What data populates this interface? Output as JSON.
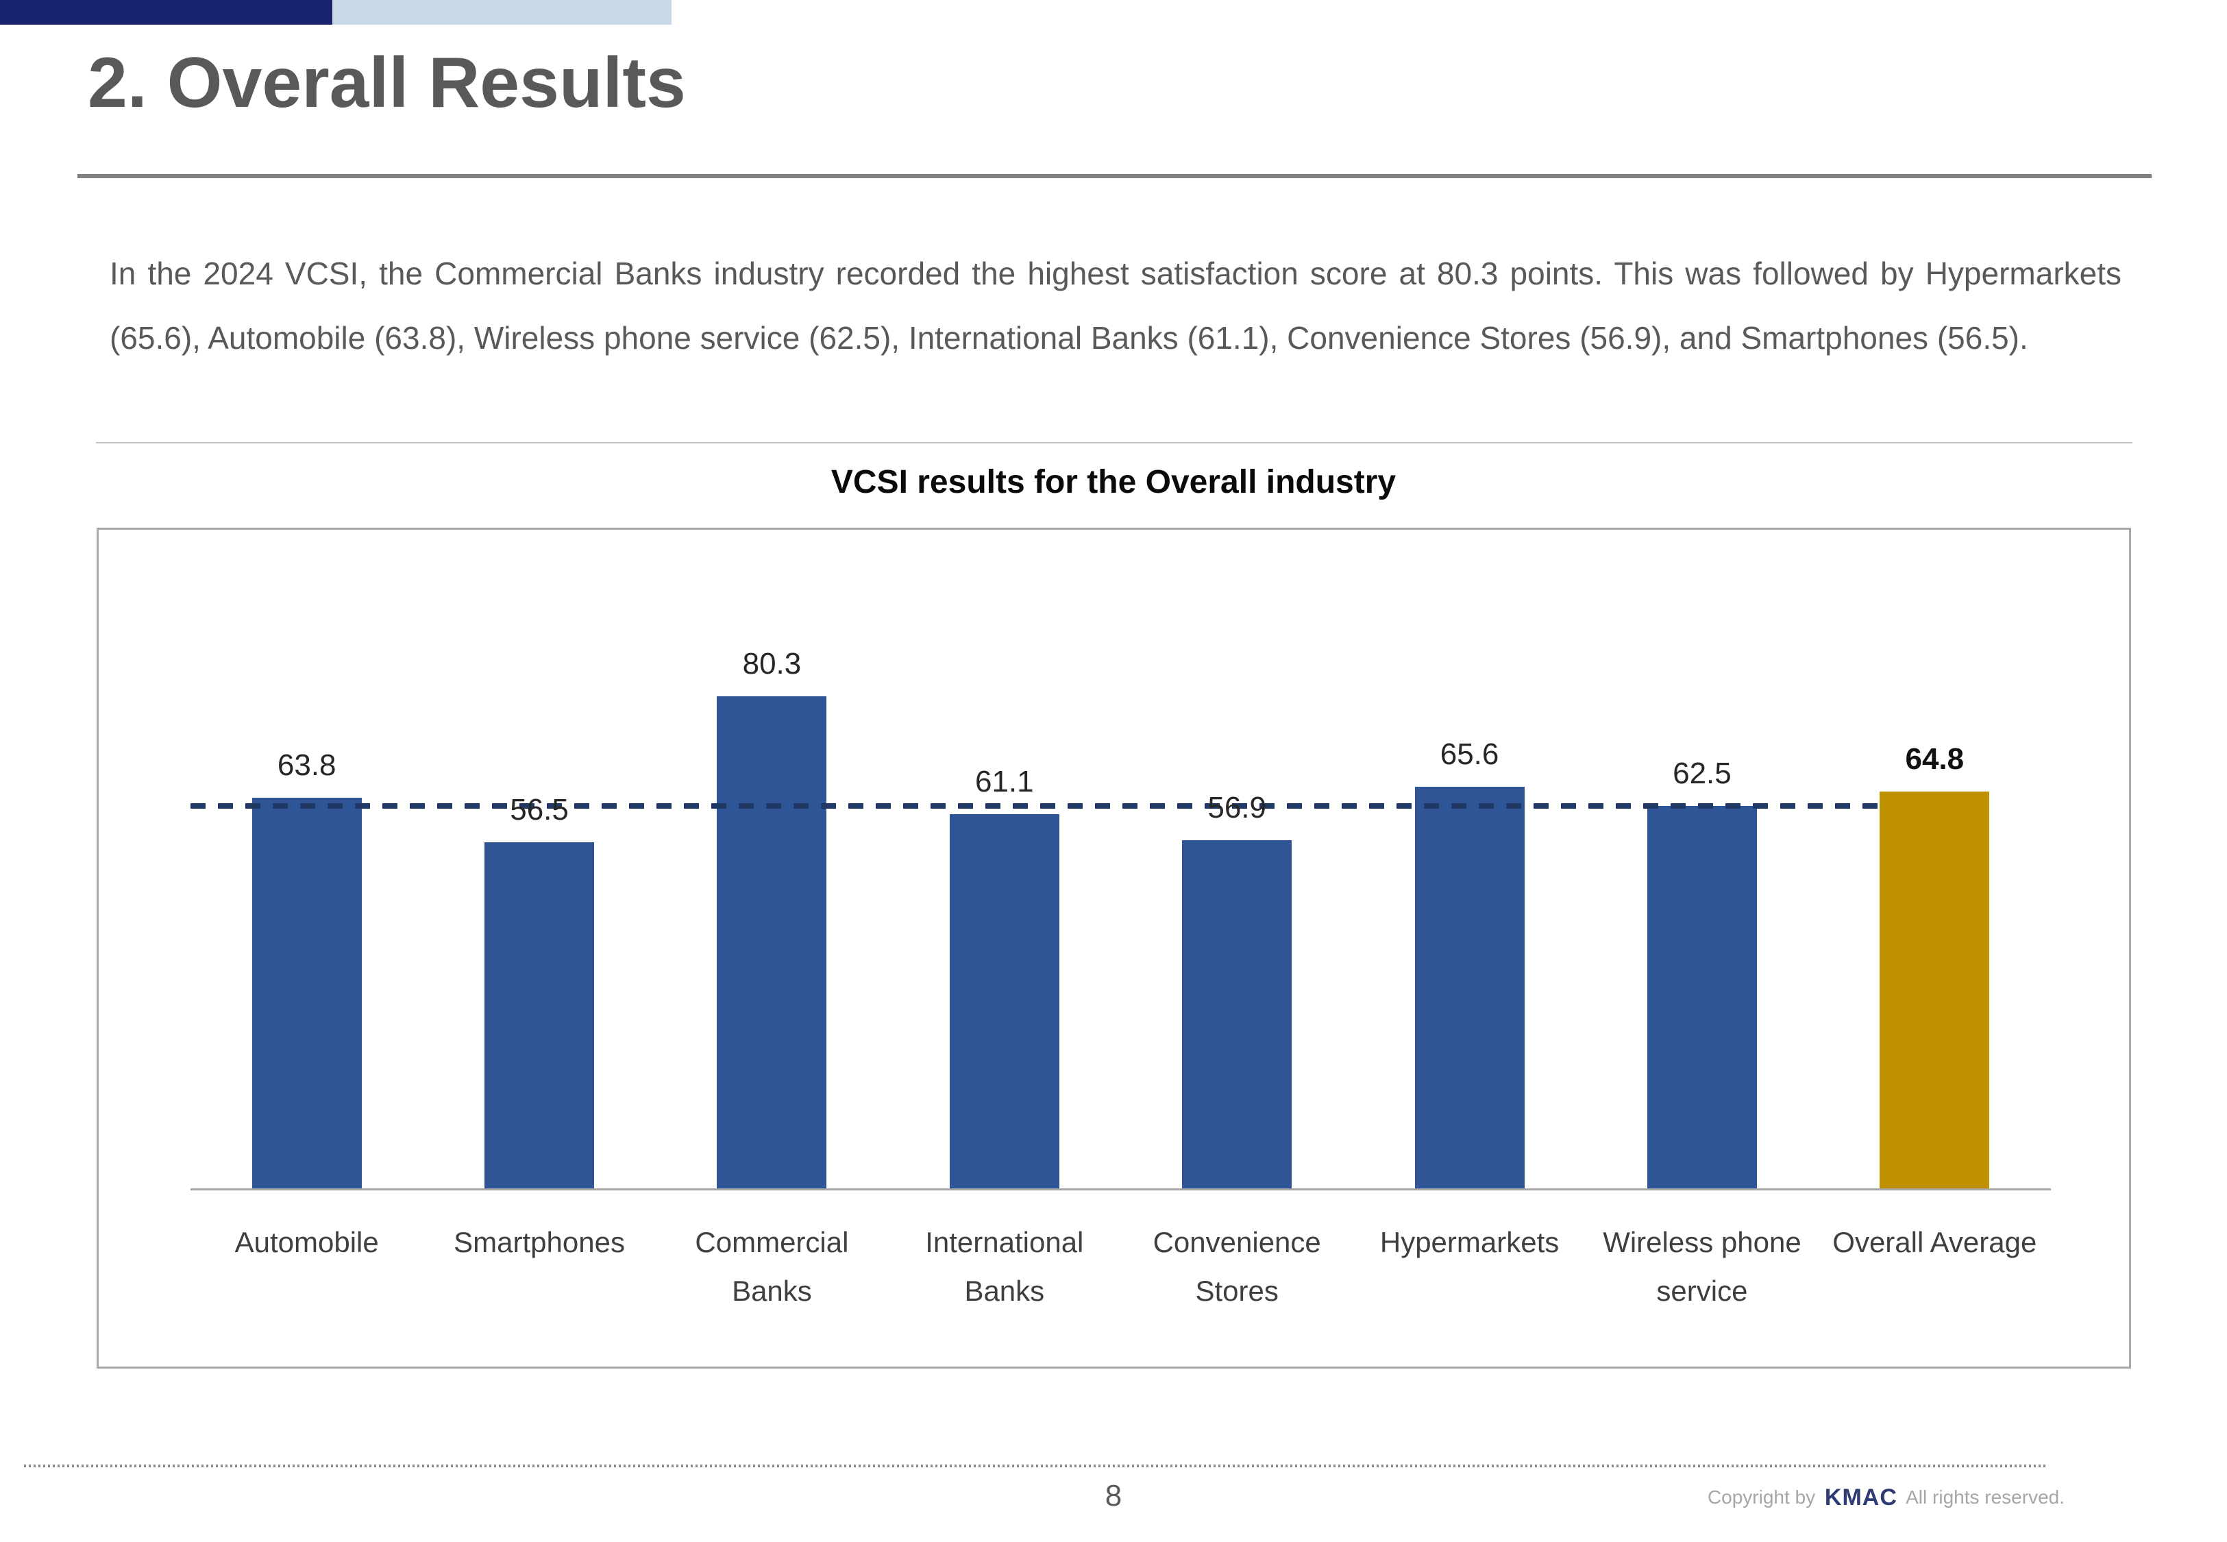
{
  "header": {
    "title": "2. Overall Results"
  },
  "intro": {
    "text": "In the 2024 VCSI, the Commercial Banks industry recorded the highest satisfaction score at 80.3 points. This was followed by Hypermarkets (65.6), Automobile (63.8), Wireless phone service  (62.5), International Banks (61.1), Convenience Stores (56.9), and Smartphones (56.5)."
  },
  "chart_data": {
    "type": "bar",
    "title": "VCSI results for the Overall industry",
    "categories": [
      "Automobile",
      "Smartphones",
      "Commercial Banks",
      "International Banks",
      "Convenience Stores",
      "Hypermarkets",
      "Wireless phone service",
      "Overall Average"
    ],
    "category_labels": [
      "Automobile",
      "Smartphones",
      "Commercial\nBanks",
      "International\nBanks",
      "Convenience\nStores",
      "Hypermarkets",
      "Wireless phone\nservice",
      "Overall Average"
    ],
    "values": [
      63.8,
      56.5,
      80.3,
      61.1,
      56.9,
      65.6,
      62.5,
      64.8
    ],
    "bar_colors": [
      "#2F5597",
      "#2F5597",
      "#2F5597",
      "#2F5597",
      "#2F5597",
      "#2F5597",
      "#2F5597",
      "#BF9000"
    ],
    "highlight_index": 7,
    "ylim": [
      0,
      100
    ],
    "grid": false,
    "legend": "none",
    "reference_line": {
      "style": "dashed",
      "color": "#1F3864",
      "at_value": 62.5
    }
  },
  "footer": {
    "page_number": "8",
    "copyright_prefix": "Copyright by",
    "brand": "KMAC",
    "copyright_suffix": "All rights reserved."
  },
  "colors": {
    "bar_navy": "#2F5597",
    "bar_gold": "#BF9000",
    "dashed_line": "#1F3864",
    "accent_navy": "#19226E",
    "accent_lightblue": "#C9D9E8",
    "brand_navy": "#2F3B73",
    "title_gray": "#595959"
  }
}
